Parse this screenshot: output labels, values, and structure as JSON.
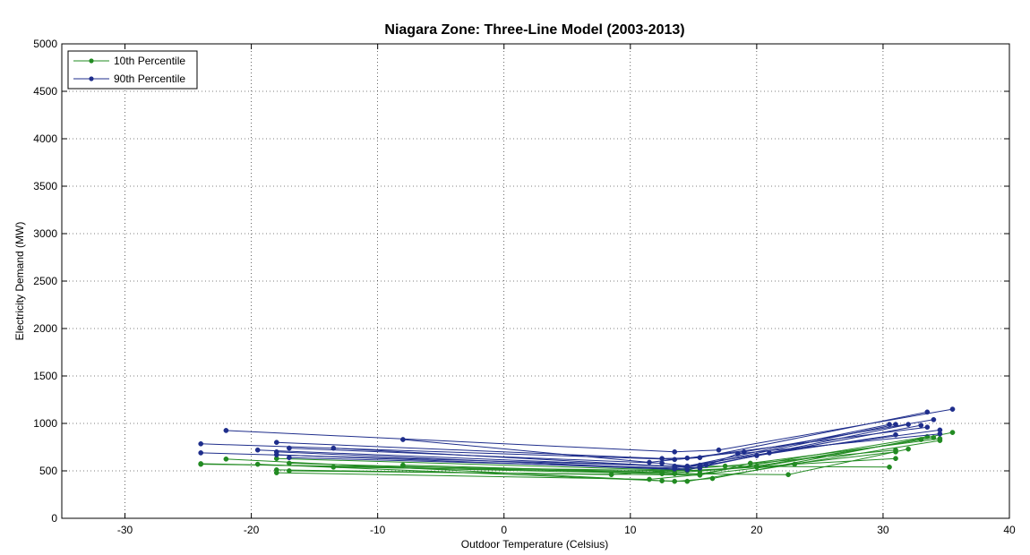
{
  "chart_data": {
    "type": "line",
    "title": "Niagara Zone: Three-Line Model (2003-2013)",
    "xlabel": "Outdoor Temperature (Celsius)",
    "ylabel": "Electricity Demand (MW)",
    "xlim": [
      -35,
      40
    ],
    "ylim": [
      0,
      5000
    ],
    "xticks": [
      -30,
      -20,
      -10,
      0,
      10,
      20,
      30,
      40
    ],
    "yticks": [
      0,
      500,
      1000,
      1500,
      2000,
      2500,
      3000,
      3500,
      4000,
      4500,
      5000
    ],
    "grid": true,
    "legend_position": "top-left",
    "colors": {
      "p10": "#228B22",
      "p90": "#1F2E8C"
    },
    "legend": [
      {
        "label": "10th Percentile",
        "color": "#228B22"
      },
      {
        "label": "90th Percentile",
        "color": "#1F2E8C"
      }
    ],
    "series": [
      {
        "group": "10th Percentile",
        "points": [
          [
            -24,
            575
          ],
          [
            12.5,
            470
          ],
          [
            15.5,
            470
          ],
          [
            33.5,
            860
          ]
        ]
      },
      {
        "group": "10th Percentile",
        "points": [
          [
            -22,
            625
          ],
          [
            13.5,
            390
          ],
          [
            16.5,
            420
          ],
          [
            35.5,
            905
          ]
        ]
      },
      {
        "group": "10th Percentile",
        "points": [
          [
            -19.5,
            570
          ],
          [
            12.5,
            395
          ],
          [
            14.5,
            390
          ],
          [
            34.5,
            820
          ]
        ]
      },
      {
        "group": "10th Percentile",
        "points": [
          [
            -18,
            480
          ],
          [
            11.5,
            410
          ],
          [
            15.5,
            460
          ],
          [
            31,
            700
          ]
        ]
      },
      {
        "group": "10th Percentile",
        "points": [
          [
            -17,
            500
          ],
          [
            15.5,
            455
          ],
          [
            19.5,
            580
          ],
          [
            34.5,
            840
          ]
        ]
      },
      {
        "group": "10th Percentile",
        "points": [
          [
            -24,
            570
          ],
          [
            14.5,
            500
          ],
          [
            15.5,
            550
          ],
          [
            30.5,
            540
          ]
        ]
      },
      {
        "group": "10th Percentile",
        "points": [
          [
            -18,
            510
          ],
          [
            8.5,
            460
          ],
          [
            17.5,
            550
          ],
          [
            31,
            720
          ]
        ]
      },
      {
        "group": "10th Percentile",
        "points": [
          [
            -17,
            580
          ],
          [
            13.5,
            470
          ],
          [
            22.5,
            460
          ],
          [
            32,
            730
          ]
        ]
      },
      {
        "group": "10th Percentile",
        "points": [
          [
            -13.5,
            540
          ],
          [
            12.5,
            490
          ],
          [
            20,
            540
          ],
          [
            33,
            830
          ]
        ]
      },
      {
        "group": "10th Percentile",
        "points": [
          [
            -8,
            560
          ],
          [
            13.5,
            480
          ],
          [
            23,
            570
          ],
          [
            31,
            630
          ]
        ]
      },
      {
        "group": "10th Percentile",
        "points": [
          [
            -18,
            630
          ],
          [
            15.5,
            500
          ],
          [
            20,
            550
          ],
          [
            34,
            850
          ]
        ]
      },
      {
        "group": "90th Percentile",
        "points": [
          [
            -22,
            925
          ],
          [
            13.5,
            700
          ],
          [
            17,
            720
          ],
          [
            35.5,
            1150
          ]
        ]
      },
      {
        "group": "90th Percentile",
        "points": [
          [
            -24,
            785
          ],
          [
            13.5,
            620
          ],
          [
            15.5,
            640
          ],
          [
            33.5,
            1120
          ]
        ]
      },
      {
        "group": "90th Percentile",
        "points": [
          [
            -18,
            800
          ],
          [
            12.5,
            630
          ],
          [
            14.5,
            635
          ],
          [
            33.5,
            960
          ]
        ]
      },
      {
        "group": "90th Percentile",
        "points": [
          [
            -24,
            690
          ],
          [
            13.5,
            550
          ],
          [
            16,
            560
          ],
          [
            33,
            980
          ]
        ]
      },
      {
        "group": "90th Percentile",
        "points": [
          [
            -19.5,
            720
          ],
          [
            14.5,
            540
          ],
          [
            15.5,
            560
          ],
          [
            31,
            990
          ]
        ]
      },
      {
        "group": "90th Percentile",
        "points": [
          [
            -17,
            740
          ],
          [
            12.5,
            580
          ],
          [
            14.5,
            550
          ],
          [
            30.5,
            990
          ]
        ]
      },
      {
        "group": "90th Percentile",
        "points": [
          [
            -18,
            700
          ],
          [
            13.5,
            520
          ],
          [
            15.5,
            540
          ],
          [
            32,
            990
          ]
        ]
      },
      {
        "group": "90th Percentile",
        "points": [
          [
            -8,
            830
          ],
          [
            11.5,
            590
          ],
          [
            19,
            700
          ],
          [
            34,
            1040
          ]
        ]
      },
      {
        "group": "90th Percentile",
        "points": [
          [
            -13.5,
            740
          ],
          [
            15.5,
            530
          ],
          [
            18.5,
            680
          ],
          [
            34.5,
            890
          ]
        ]
      },
      {
        "group": "90th Percentile",
        "points": [
          [
            -17,
            640
          ],
          [
            13.5,
            530
          ],
          [
            21,
            690
          ],
          [
            34.5,
            930
          ]
        ]
      },
      {
        "group": "90th Percentile",
        "points": [
          [
            -18,
            670
          ],
          [
            14.5,
            510
          ],
          [
            20,
            660
          ],
          [
            31,
            880
          ]
        ]
      }
    ]
  }
}
